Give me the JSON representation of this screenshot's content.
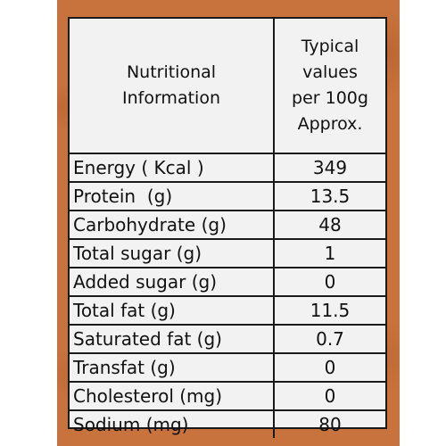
{
  "header": {
    "name_col_line1": "Nutritional",
    "name_col_line2": "Information",
    "value_col_line1": "Typical",
    "value_col_line2": "values",
    "value_col_line3": "per 100g",
    "value_col_line4": "Approx."
  },
  "rows": [
    {
      "name": "Energy ( Kcal )",
      "value": "349"
    },
    {
      "name": "Protein  (g)",
      "value": "13.5"
    },
    {
      "name": "Carbohydrate (g)",
      "value": "48"
    },
    {
      "name": "Total sugar (g)",
      "value": "1"
    },
    {
      "name": "Added sugar (g)",
      "value": "0"
    },
    {
      "name": "Total fat (g)",
      "value": "11.5"
    },
    {
      "name": "Saturated fat (g)",
      "value": "0.7"
    },
    {
      "name": "Transfat (g)",
      "value": "0"
    },
    {
      "name": "Cholesterol (mg)",
      "value": "0"
    },
    {
      "name": "Sodium (mg)",
      "value": "80"
    }
  ],
  "colors": {
    "background": "#c8733e",
    "label": "#f2f2f2",
    "border": "#1a1a1a"
  }
}
